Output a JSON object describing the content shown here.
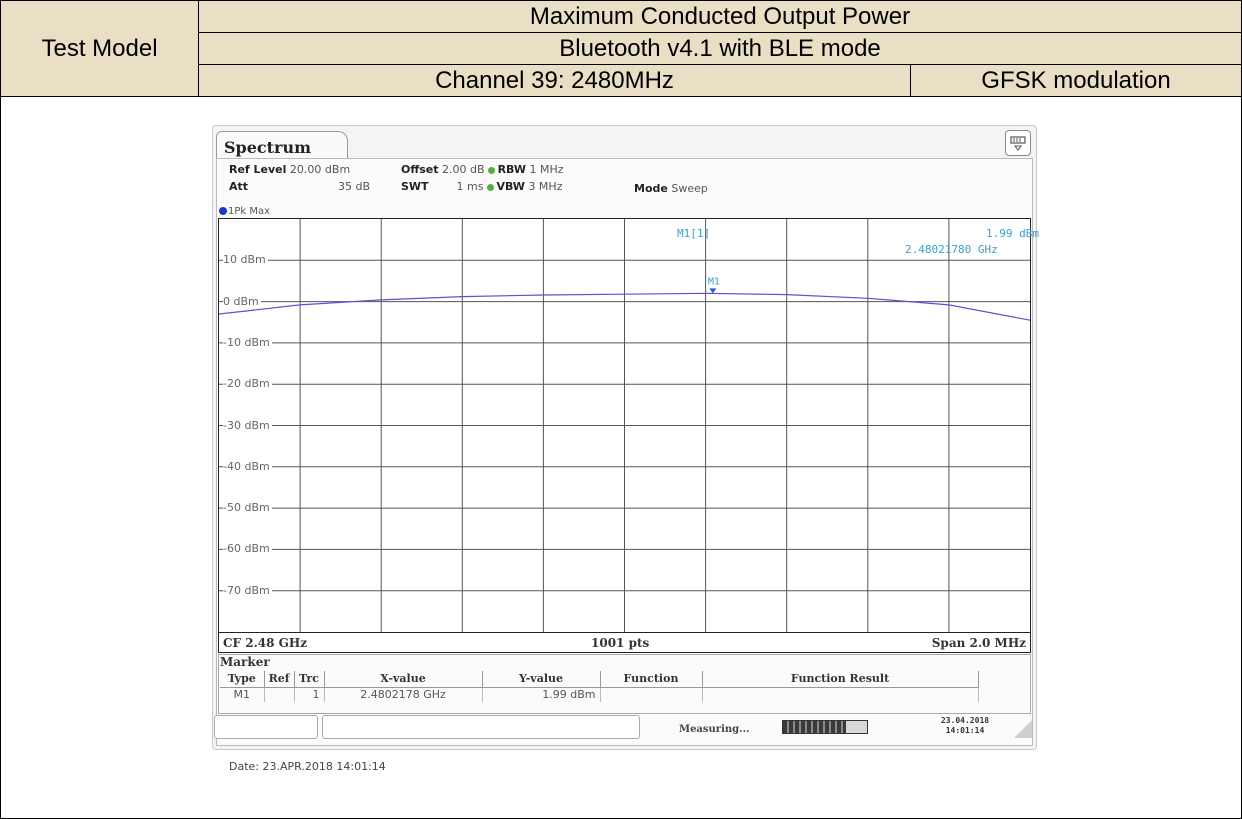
{
  "header": {
    "test_model_label": "Test Model",
    "row1": "Maximum Conducted Output Power",
    "row2": "Bluetooth v4.1 with BLE mode",
    "row3_left": "Channel 39: 2480MHz",
    "row3_right": "GFSK modulation"
  },
  "analyzer": {
    "tab_label": "Spectrum",
    "ref_level_label": "Ref Level",
    "ref_level_value": "20.00 dBm",
    "offset_label": "Offset",
    "offset_value": "2.00 dB",
    "rbw_label": "RBW",
    "rbw_value": "1 MHz",
    "att_label": "Att",
    "att_value": "35 dB",
    "swt_label": "SWT",
    "swt_value": "1 ms",
    "vbw_label": "VBW",
    "vbw_value": "3 MHz",
    "mode_label": "Mode",
    "mode_value": "Sweep",
    "trace_label": "1Pk Max",
    "marker_name": "M1[1]",
    "marker_level": "1.99 dBm",
    "marker_freq": "2.48021780 GHz",
    "marker_tag": "M1",
    "cf_label": "CF 2.48 GHz",
    "pts_label": "1001 pts",
    "span_label": "Span 2.0 MHz",
    "marker_title": "Marker",
    "status_text": "Measuring...",
    "progress_fraction": 0.75,
    "sa_date": "23.04.2018",
    "sa_time": "14:01:14",
    "date_caption": "Date: 23.APR.2018  14:01:14"
  },
  "marker_table": {
    "columns": [
      "Type",
      "Ref",
      "Trc",
      "X-value",
      "Y-value",
      "Function",
      "Function Result"
    ],
    "rows": [
      [
        "M1",
        "",
        "1",
        "2.4802178 GHz",
        "1.99 dBm",
        "",
        ""
      ]
    ]
  },
  "chart_data": {
    "type": "line",
    "title": "",
    "xlabel": "",
    "ylabel": "",
    "y_tick_labels": [
      "10 dBm",
      "0 dBm",
      "-10 dBm",
      "-20 dBm",
      "-30 dBm",
      "-40 dBm",
      "-50 dBm",
      "-60 dBm",
      "-70 dBm"
    ],
    "y_ticks": [
      10,
      0,
      -10,
      -20,
      -30,
      -40,
      -50,
      -60,
      -70
    ],
    "ylim": [
      -80,
      20
    ],
    "xlim": [
      2479.0,
      2481.0
    ],
    "x_unit": "MHz",
    "grid": true,
    "series": [
      {
        "name": "1Pk Max",
        "color": "#5555cc",
        "x": [
          2479.0,
          2479.2,
          2479.4,
          2479.6,
          2479.8,
          2480.0,
          2480.2,
          2480.4,
          2480.6,
          2480.8,
          2481.0
        ],
        "y": [
          -3.0,
          -0.8,
          0.4,
          1.2,
          1.6,
          1.8,
          2.0,
          1.7,
          0.8,
          -0.8,
          -4.5
        ]
      }
    ],
    "marker": {
      "x": 2480.2178,
      "y": 1.99,
      "label": "M1"
    }
  }
}
